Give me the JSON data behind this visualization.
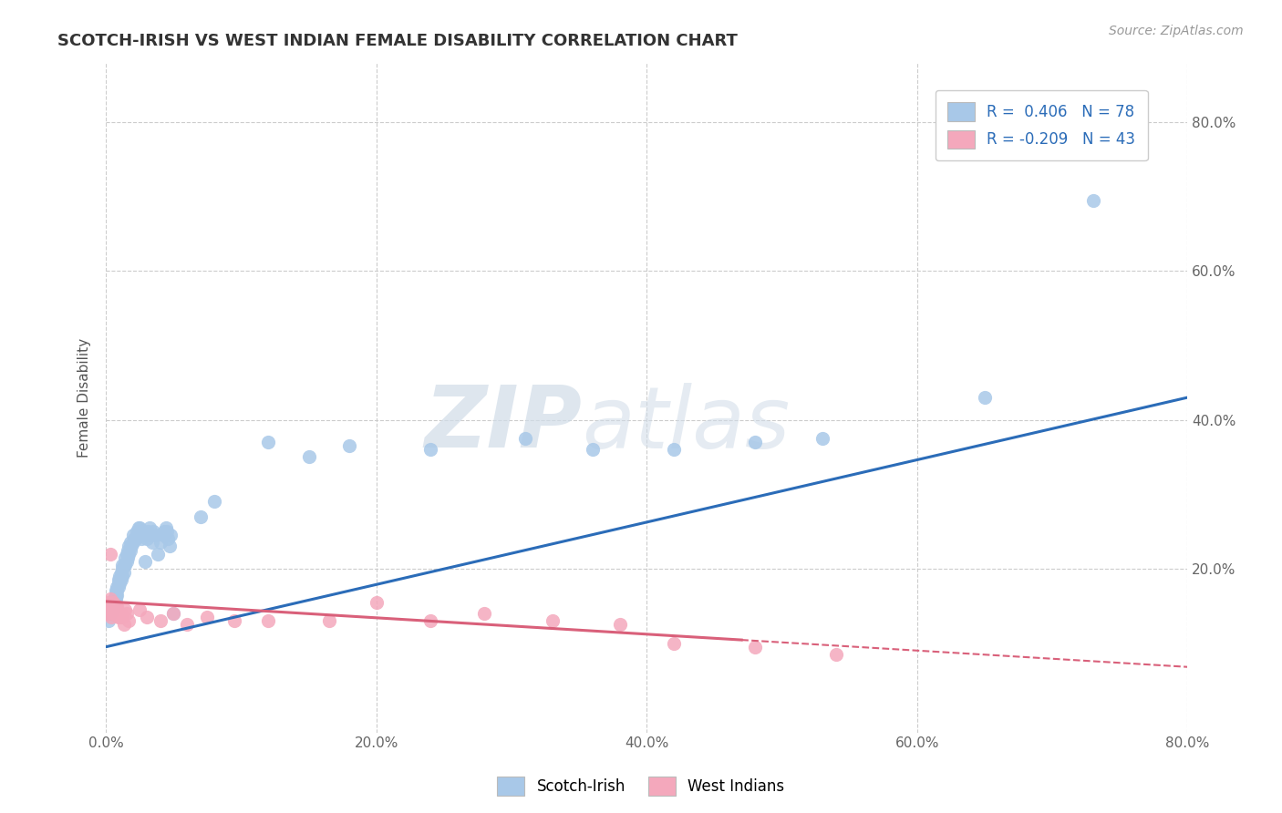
{
  "title": "SCOTCH-IRISH VS WEST INDIAN FEMALE DISABILITY CORRELATION CHART",
  "source_text": "Source: ZipAtlas.com",
  "ylabel": "Female Disability",
  "xlim": [
    0.0,
    0.8
  ],
  "ylim": [
    -0.02,
    0.88
  ],
  "xtick_vals": [
    0.0,
    0.2,
    0.4,
    0.6,
    0.8
  ],
  "ytick_vals": [
    0.2,
    0.4,
    0.6,
    0.8
  ],
  "scotch_irish_color": "#a8c8e8",
  "west_indian_color": "#f4a8bc",
  "scotch_irish_line_color": "#2b6cb8",
  "west_indian_line_color": "#d9607a",
  "legend_R1": "R =  0.406",
  "legend_N1": "N = 78",
  "legend_R2": "R = -0.209",
  "legend_N2": "N = 43",
  "watermark_zip": "ZIP",
  "watermark_atlas": "atlas",
  "grid_color": "#cccccc",
  "background_color": "#ffffff",
  "scotch_irish_x": [
    0.002,
    0.003,
    0.004,
    0.005,
    0.005,
    0.006,
    0.006,
    0.007,
    0.007,
    0.007,
    0.008,
    0.008,
    0.008,
    0.009,
    0.009,
    0.009,
    0.01,
    0.01,
    0.01,
    0.011,
    0.011,
    0.012,
    0.012,
    0.012,
    0.013,
    0.013,
    0.014,
    0.014,
    0.015,
    0.015,
    0.016,
    0.016,
    0.017,
    0.017,
    0.018,
    0.018,
    0.019,
    0.02,
    0.02,
    0.021,
    0.022,
    0.023,
    0.024,
    0.025,
    0.026,
    0.027,
    0.028,
    0.029,
    0.03,
    0.031,
    0.032,
    0.033,
    0.034,
    0.035,
    0.037,
    0.038,
    0.04,
    0.042,
    0.043,
    0.044,
    0.045,
    0.046,
    0.047,
    0.048,
    0.05,
    0.07,
    0.08,
    0.12,
    0.15,
    0.18,
    0.24,
    0.31,
    0.36,
    0.42,
    0.48,
    0.53,
    0.65,
    0.73
  ],
  "scotch_irish_y": [
    0.13,
    0.14,
    0.15,
    0.155,
    0.145,
    0.155,
    0.16,
    0.16,
    0.165,
    0.17,
    0.165,
    0.17,
    0.175,
    0.175,
    0.18,
    0.185,
    0.18,
    0.185,
    0.19,
    0.185,
    0.195,
    0.19,
    0.2,
    0.205,
    0.195,
    0.205,
    0.205,
    0.215,
    0.21,
    0.22,
    0.215,
    0.225,
    0.22,
    0.23,
    0.225,
    0.235,
    0.23,
    0.235,
    0.245,
    0.24,
    0.24,
    0.25,
    0.255,
    0.255,
    0.24,
    0.25,
    0.245,
    0.21,
    0.24,
    0.25,
    0.255,
    0.245,
    0.235,
    0.25,
    0.245,
    0.22,
    0.235,
    0.245,
    0.25,
    0.255,
    0.25,
    0.24,
    0.23,
    0.245,
    0.14,
    0.27,
    0.29,
    0.37,
    0.35,
    0.365,
    0.36,
    0.375,
    0.36,
    0.36,
    0.37,
    0.375,
    0.43,
    0.695
  ],
  "west_indian_x": [
    0.001,
    0.002,
    0.002,
    0.003,
    0.003,
    0.004,
    0.004,
    0.005,
    0.005,
    0.005,
    0.006,
    0.006,
    0.007,
    0.007,
    0.008,
    0.008,
    0.009,
    0.009,
    0.01,
    0.01,
    0.011,
    0.012,
    0.013,
    0.014,
    0.015,
    0.017,
    0.025,
    0.03,
    0.04,
    0.05,
    0.06,
    0.075,
    0.095,
    0.12,
    0.165,
    0.2,
    0.24,
    0.28,
    0.33,
    0.38,
    0.42,
    0.48,
    0.54
  ],
  "west_indian_y": [
    0.14,
    0.155,
    0.145,
    0.16,
    0.22,
    0.135,
    0.15,
    0.14,
    0.15,
    0.155,
    0.145,
    0.14,
    0.14,
    0.15,
    0.145,
    0.15,
    0.14,
    0.135,
    0.14,
    0.135,
    0.14,
    0.135,
    0.125,
    0.145,
    0.14,
    0.13,
    0.145,
    0.135,
    0.13,
    0.14,
    0.125,
    0.135,
    0.13,
    0.13,
    0.13,
    0.155,
    0.13,
    0.14,
    0.13,
    0.125,
    0.1,
    0.095,
    0.085
  ]
}
